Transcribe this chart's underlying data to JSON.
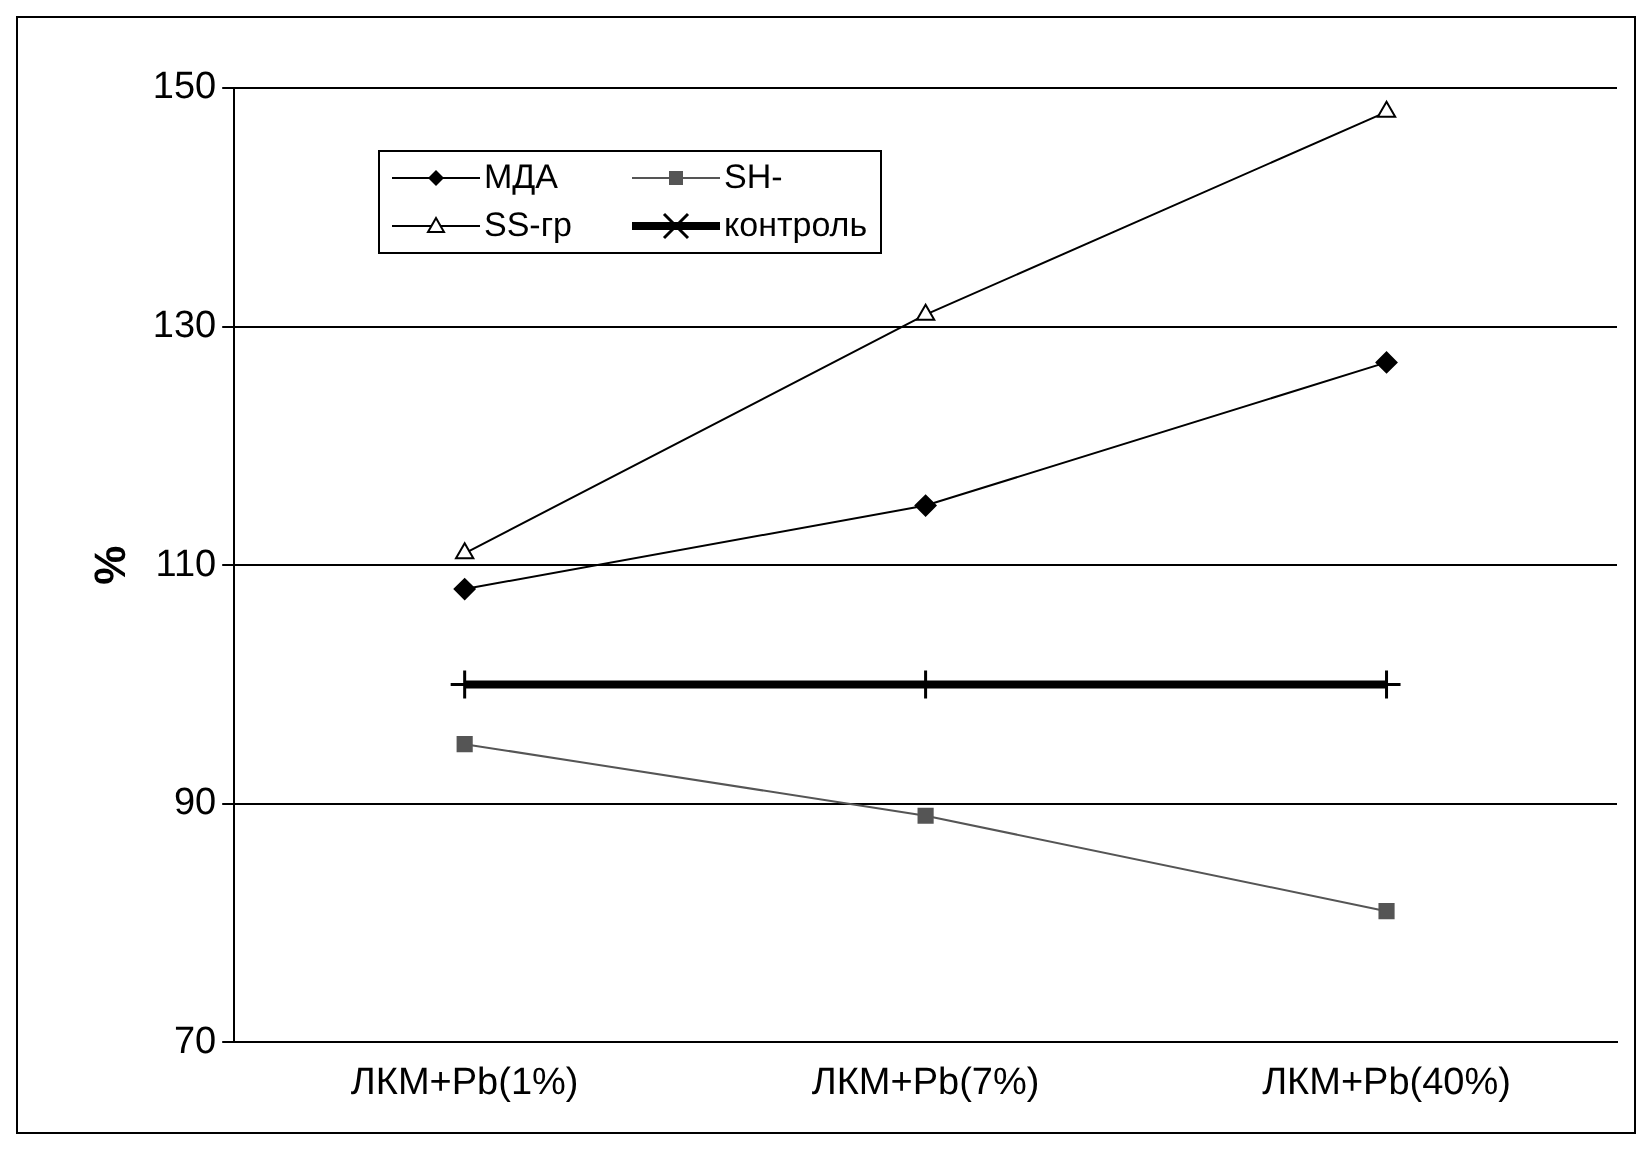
{
  "chart_data": {
    "type": "line",
    "ylabel": "%",
    "categories": [
      "ЛКМ+Pb(1%)",
      "ЛКМ+Pb(7%)",
      "ЛКМ+Pb(40%)"
    ],
    "series": [
      {
        "name": "МДА",
        "color": "#000000",
        "marker": "diamond",
        "values": [
          108,
          115,
          127
        ]
      },
      {
        "name": "SH-",
        "color": "#555555",
        "marker": "square",
        "values": [
          95,
          89,
          81
        ]
      },
      {
        "name": "SS-гр",
        "color": "#000000",
        "marker": "triangle",
        "values": [
          111,
          131,
          148
        ]
      },
      {
        "name": "контроль",
        "color": "#000000",
        "marker": "cross",
        "values": [
          100,
          100,
          100
        ]
      }
    ],
    "ylim": [
      70,
      150
    ],
    "yticks": [
      70,
      90,
      110,
      130,
      150
    ],
    "grid": "y",
    "legend": "top left"
  }
}
